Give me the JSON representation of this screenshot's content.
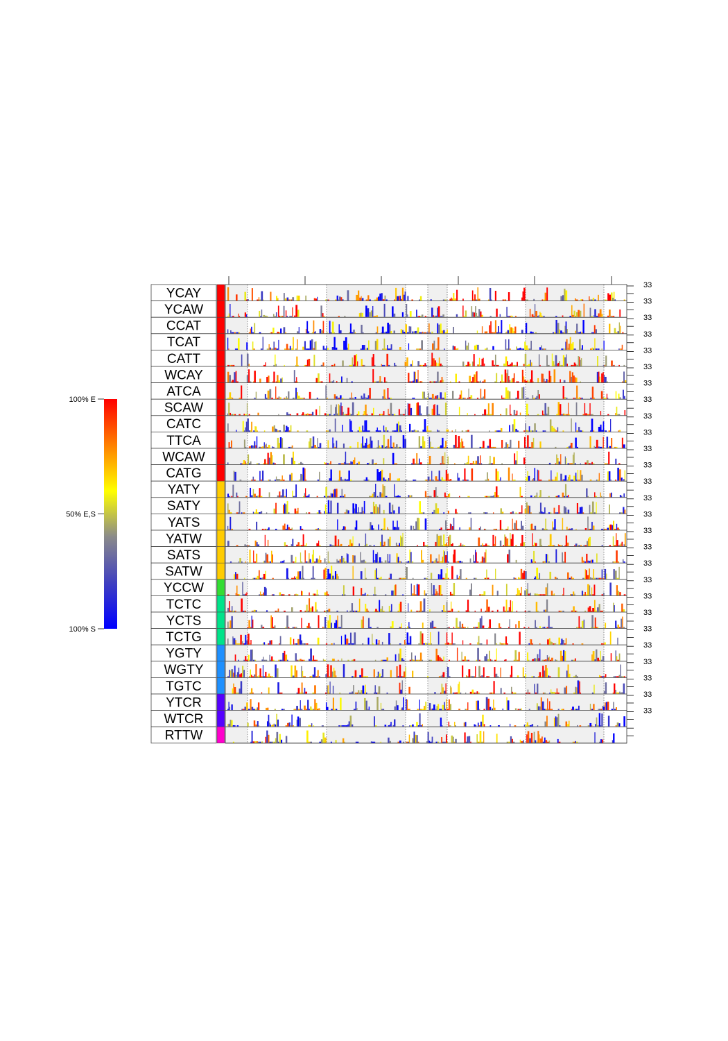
{
  "chart_data": {
    "type": "area",
    "title": "",
    "xlabel": "",
    "ylabel": "",
    "ylim": [
      0,
      33
    ],
    "grid": false,
    "legend": {
      "placement": "left",
      "labels": [
        "100% E",
        "50% E,S",
        "100% S"
      ],
      "gradient": [
        "#0000ff",
        "#4040c0",
        "#8a8a8a",
        "#ffff00",
        "#ff8000",
        "#ff0000"
      ]
    },
    "panel_shading": "alternating grey blocks separated by dotted lines",
    "right_axis_label": "33",
    "series": [
      {
        "name": "YCAY",
        "group_color": "#ff0000"
      },
      {
        "name": "YCAW",
        "group_color": "#ff0000"
      },
      {
        "name": "CCAT",
        "group_color": "#ff0000"
      },
      {
        "name": "TCAT",
        "group_color": "#ff0000"
      },
      {
        "name": "CATT",
        "group_color": "#ff0000"
      },
      {
        "name": "WCAY",
        "group_color": "#ff0000"
      },
      {
        "name": "ATCA",
        "group_color": "#ff0000"
      },
      {
        "name": "SCAW",
        "group_color": "#ff0000"
      },
      {
        "name": "CATC",
        "group_color": "#ff0000"
      },
      {
        "name": "TTCA",
        "group_color": "#ff0000"
      },
      {
        "name": "WCAW",
        "group_color": "#ff0000"
      },
      {
        "name": "CATG",
        "group_color": "#ff0000"
      },
      {
        "name": "YATY",
        "group_color": "#ffcc00"
      },
      {
        "name": "SATY",
        "group_color": "#ffcc00"
      },
      {
        "name": "YATS",
        "group_color": "#ffcc00"
      },
      {
        "name": "YATW",
        "group_color": "#ffcc00"
      },
      {
        "name": "SATS",
        "group_color": "#ffcc00"
      },
      {
        "name": "SATW",
        "group_color": "#ffcc00"
      },
      {
        "name": "YCCW",
        "group_color": "#33dd33"
      },
      {
        "name": "TCTC",
        "group_color": "#00e38a"
      },
      {
        "name": "YCTS",
        "group_color": "#00e38a"
      },
      {
        "name": "TCTG",
        "group_color": "#00e38a"
      },
      {
        "name": "YGTY",
        "group_color": "#1e90ff"
      },
      {
        "name": "WGTY",
        "group_color": "#1e90ff"
      },
      {
        "name": "TGTC",
        "group_color": "#1e90ff"
      },
      {
        "name": "YTCR",
        "group_color": "#5500ff"
      },
      {
        "name": "WTCR",
        "group_color": "#5500ff"
      },
      {
        "name": "RTTW",
        "group_color": "#ff00cc"
      }
    ]
  }
}
